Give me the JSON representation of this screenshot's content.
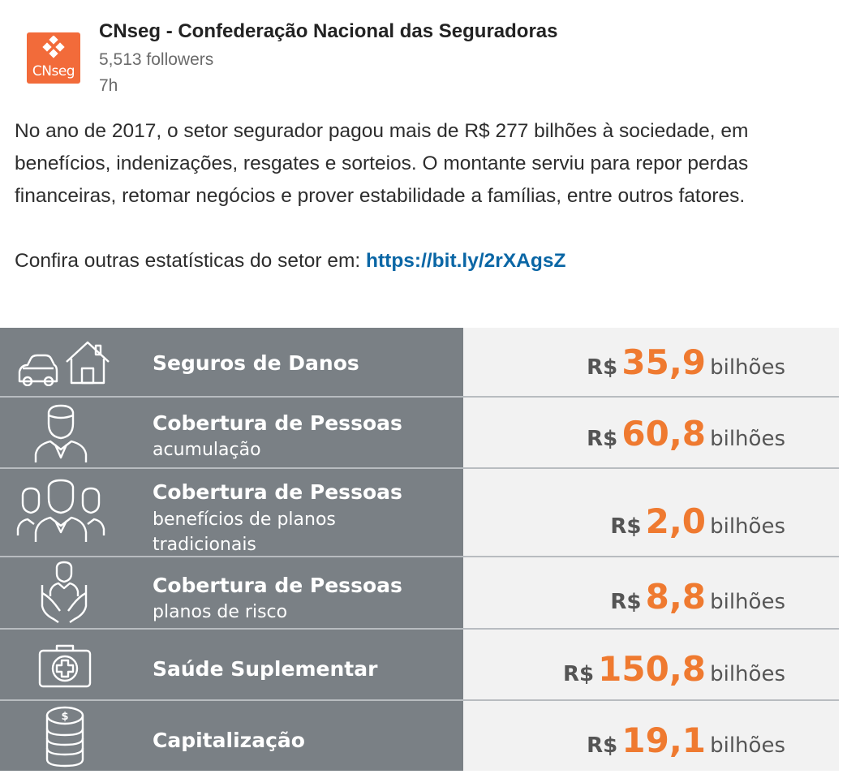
{
  "post": {
    "company_name": "CNseg - Confederação Nacional das Seguradoras",
    "logo_text": "CNseg",
    "followers": "5,513 followers",
    "time": "7h",
    "text_line1": "No ano de 2017, o setor segurador pagou mais de R$ 277 bilhões à sociedade, em benefícios, indenizações, resgates e sorteios. O montante serviu para repor perdas financeiras, retomar negócios e prover estabilidade a famílias, entre outros fatores.",
    "text_line2_prefix": "Confira outras estatísticas do setor em: ",
    "link_text": "https://bit.ly/2rXAgsZ"
  },
  "infographic": {
    "currency": "R$",
    "unit": "bilhões",
    "rows": [
      {
        "title": "Seguros de Danos",
        "subtitle": "",
        "value": "35,9",
        "icon": "car-house-icon"
      },
      {
        "title": "Cobertura de Pessoas",
        "subtitle": "acumulação",
        "value": "60,8",
        "icon": "person-icon"
      },
      {
        "title": "Cobertura de Pessoas",
        "subtitle": "benefícios de planos tradicionais",
        "value": "2,0",
        "icon": "group-icon"
      },
      {
        "title": "Cobertura de Pessoas",
        "subtitle": "planos de risco",
        "value": "8,8",
        "icon": "hands-person-icon"
      },
      {
        "title": "Saúde Suplementar",
        "subtitle": "",
        "value": "150,8",
        "icon": "medical-kit-icon"
      },
      {
        "title": "Capitalização",
        "subtitle": "",
        "value": "19,1",
        "icon": "coins-icon"
      }
    ]
  },
  "colors": {
    "accent": "#ef7a30",
    "panel": "#7a8085",
    "link": "#0a66a5",
    "logo": "#f26b3a"
  }
}
